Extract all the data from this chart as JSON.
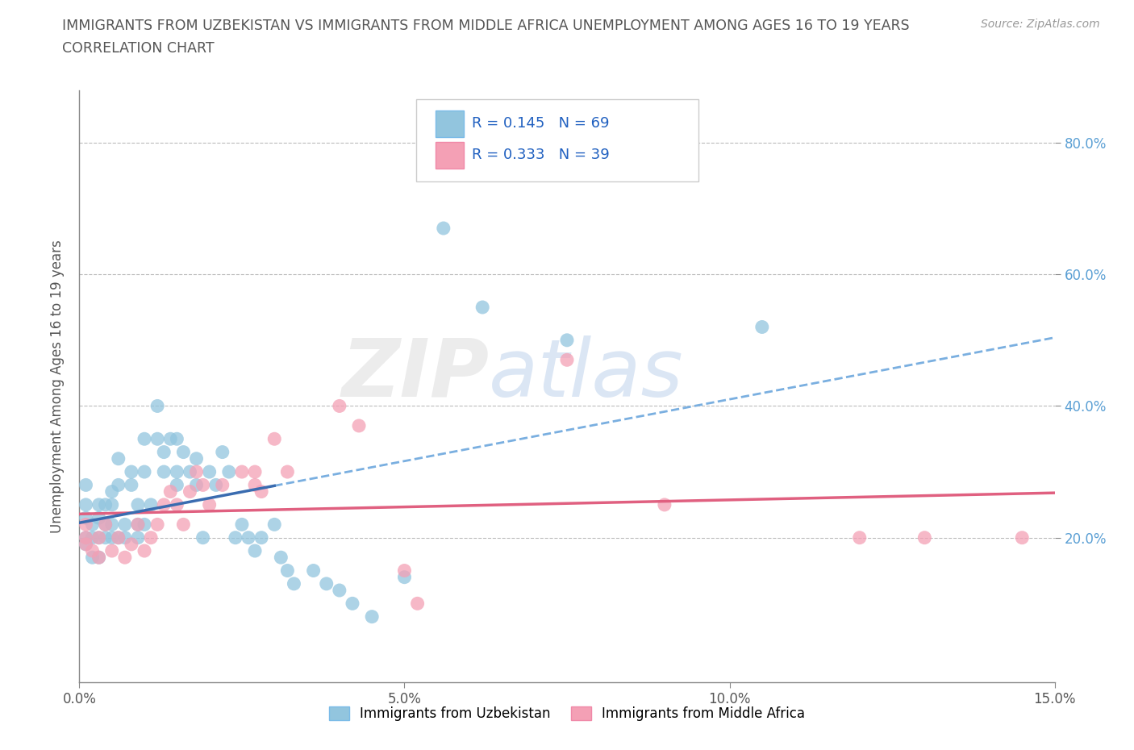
{
  "title_line1": "IMMIGRANTS FROM UZBEKISTAN VS IMMIGRANTS FROM MIDDLE AFRICA UNEMPLOYMENT AMONG AGES 16 TO 19 YEARS",
  "title_line2": "CORRELATION CHART",
  "source_text": "Source: ZipAtlas.com",
  "ylabel": "Unemployment Among Ages 16 to 19 years",
  "xlim": [
    0.0,
    0.15
  ],
  "ylim": [
    -0.02,
    0.88
  ],
  "xtick_labels": [
    "0.0%",
    "5.0%",
    "10.0%",
    "15.0%"
  ],
  "xtick_values": [
    0.0,
    0.05,
    0.1,
    0.15
  ],
  "ytick_labels": [
    "20.0%",
    "40.0%",
    "60.0%",
    "80.0%"
  ],
  "ytick_values": [
    0.2,
    0.4,
    0.6,
    0.8
  ],
  "uzbekistan_color": "#92C5DE",
  "middle_africa_color": "#F4A0B5",
  "uzbekistan_label": "Immigrants from Uzbekistan",
  "middle_africa_label": "Immigrants from Middle Africa",
  "uzbekistan_R": 0.145,
  "uzbekistan_N": 69,
  "middle_africa_R": 0.333,
  "middle_africa_N": 39,
  "legend_R_color": "#2060C0",
  "trend_blue_solid": "#3A6CB0",
  "trend_blue_dashed": "#7AAFE0",
  "trend_pink": "#E06080",
  "watermark_text": "ZIPatlas",
  "uzbekistan_x": [
    0.001,
    0.001,
    0.001,
    0.001,
    0.001,
    0.002,
    0.002,
    0.002,
    0.003,
    0.003,
    0.003,
    0.003,
    0.004,
    0.004,
    0.004,
    0.005,
    0.005,
    0.005,
    0.005,
    0.006,
    0.006,
    0.006,
    0.007,
    0.007,
    0.008,
    0.008,
    0.009,
    0.009,
    0.009,
    0.01,
    0.01,
    0.01,
    0.011,
    0.012,
    0.012,
    0.013,
    0.013,
    0.014,
    0.015,
    0.015,
    0.015,
    0.016,
    0.017,
    0.018,
    0.018,
    0.019,
    0.02,
    0.021,
    0.022,
    0.023,
    0.024,
    0.025,
    0.026,
    0.027,
    0.028,
    0.03,
    0.031,
    0.032,
    0.033,
    0.036,
    0.038,
    0.04,
    0.042,
    0.045,
    0.05,
    0.056,
    0.062,
    0.075,
    0.105
  ],
  "uzbekistan_y": [
    0.2,
    0.23,
    0.25,
    0.28,
    0.19,
    0.22,
    0.2,
    0.17,
    0.25,
    0.23,
    0.2,
    0.17,
    0.22,
    0.2,
    0.25,
    0.22,
    0.2,
    0.27,
    0.25,
    0.2,
    0.28,
    0.32,
    0.22,
    0.2,
    0.28,
    0.3,
    0.22,
    0.2,
    0.25,
    0.22,
    0.3,
    0.35,
    0.25,
    0.4,
    0.35,
    0.3,
    0.33,
    0.35,
    0.28,
    0.3,
    0.35,
    0.33,
    0.3,
    0.32,
    0.28,
    0.2,
    0.3,
    0.28,
    0.33,
    0.3,
    0.2,
    0.22,
    0.2,
    0.18,
    0.2,
    0.22,
    0.17,
    0.15,
    0.13,
    0.15,
    0.13,
    0.12,
    0.1,
    0.08,
    0.14,
    0.67,
    0.55,
    0.5,
    0.52
  ],
  "middle_africa_x": [
    0.001,
    0.001,
    0.001,
    0.002,
    0.003,
    0.003,
    0.004,
    0.005,
    0.006,
    0.007,
    0.008,
    0.009,
    0.01,
    0.011,
    0.012,
    0.013,
    0.014,
    0.015,
    0.016,
    0.017,
    0.018,
    0.019,
    0.02,
    0.022,
    0.025,
    0.027,
    0.027,
    0.028,
    0.03,
    0.032,
    0.04,
    0.043,
    0.05,
    0.052,
    0.075,
    0.09,
    0.12,
    0.13,
    0.145
  ],
  "middle_africa_y": [
    0.2,
    0.22,
    0.19,
    0.18,
    0.2,
    0.17,
    0.22,
    0.18,
    0.2,
    0.17,
    0.19,
    0.22,
    0.18,
    0.2,
    0.22,
    0.25,
    0.27,
    0.25,
    0.22,
    0.27,
    0.3,
    0.28,
    0.25,
    0.28,
    0.3,
    0.28,
    0.3,
    0.27,
    0.35,
    0.3,
    0.4,
    0.37,
    0.15,
    0.1,
    0.47,
    0.25,
    0.2,
    0.2,
    0.2
  ]
}
